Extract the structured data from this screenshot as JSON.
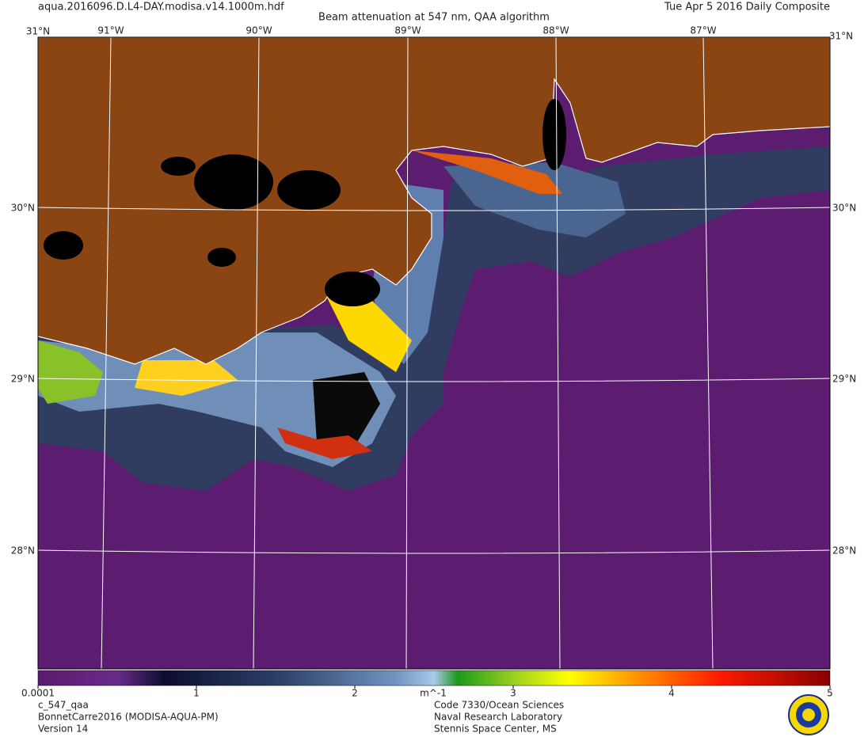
{
  "header": {
    "file": "aqua.2016096.D.L4-DAY.modisa.v14.1000m.hdf",
    "title": "Beam attenuation at 547 nm, QAA algorithm",
    "date": "Tue Apr  5 2016 Daily Composite"
  },
  "map": {
    "lon_labels": [
      "91°W",
      "90°W",
      "89°W",
      "88°W",
      "87°W"
    ],
    "lat_labels": [
      "30°N",
      "29°N",
      "28°N"
    ],
    "corner_label": "31°N"
  },
  "colorbar": {
    "ticks": [
      {
        "value": 0.0001,
        "label": "0.0001"
      },
      1,
      2,
      3,
      4,
      5
    ],
    "unit": "m^-1"
  },
  "footer": {
    "left": [
      "c_547_qaa",
      "BonnetCarre2016 (MODISA-AQUA-PM)",
      "Version 14"
    ],
    "right": [
      "Code 7330/Ocean Sciences",
      "Naval Research Laboratory",
      "Stennis Space Center, MS"
    ]
  }
}
